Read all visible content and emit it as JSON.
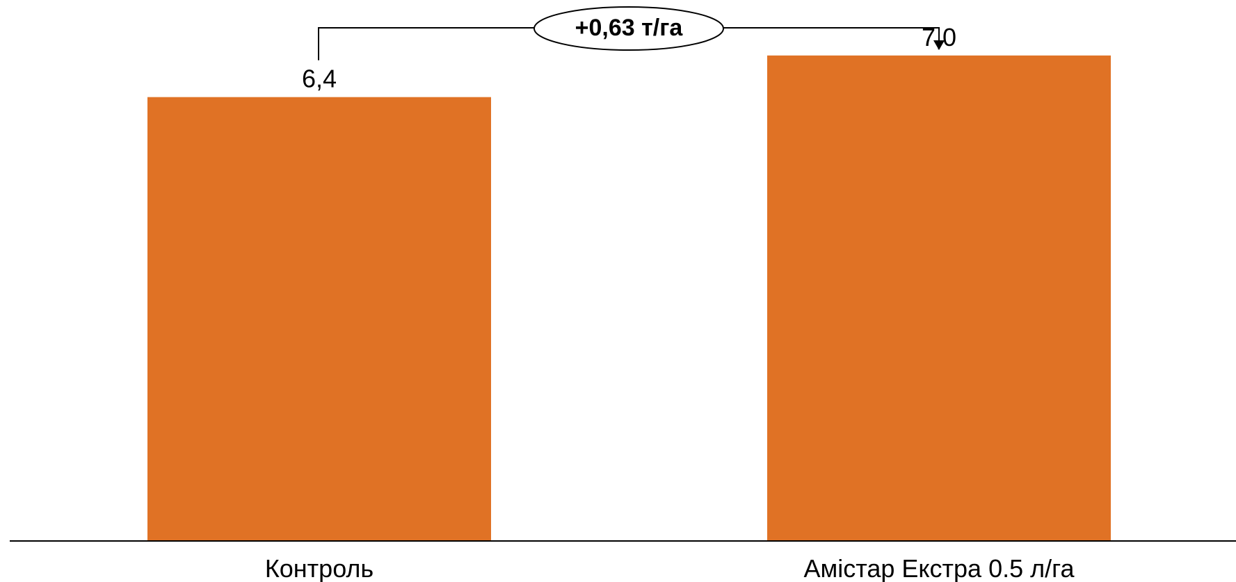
{
  "chart_data": {
    "type": "bar",
    "categories": [
      "Контроль",
      "Амістар Екстра 0.5 л/га"
    ],
    "values": [
      6.4,
      7.0
    ],
    "value_labels": [
      "6,4",
      "7,0"
    ],
    "title": "",
    "xlabel": "",
    "ylabel": "",
    "ylim": [
      0,
      7.8
    ],
    "grid": false,
    "annotation": {
      "text": "+0,63 т/га",
      "from": 0,
      "to": 1
    },
    "colors": {
      "bar": "#E07225",
      "axis": "#000000",
      "text": "#000000"
    }
  }
}
